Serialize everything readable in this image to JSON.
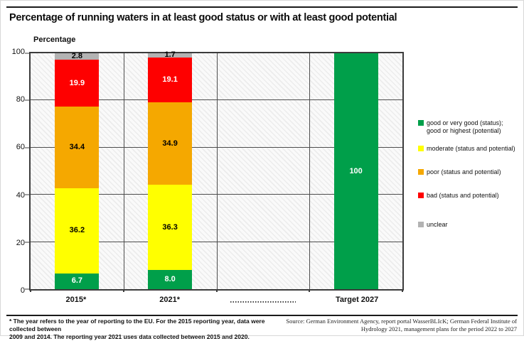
{
  "header": {
    "title": "Percentage of running waters in at least good status or with at least good potential"
  },
  "chart_data": {
    "type": "bar",
    "stacked": true,
    "title": "Percentage of running waters in at least good status or with at least good potential",
    "xlabel": "",
    "ylabel": "Percentage",
    "ylim": [
      0,
      100
    ],
    "yticks": [
      0,
      20,
      40,
      60,
      80,
      100
    ],
    "grid": "horizontal gridlines + vertical category dividers",
    "legend_position": "right",
    "background_pattern": "light diagonal hatch",
    "categories": [
      {
        "label": "2015*"
      },
      {
        "label": "2021*"
      },
      {
        "label": "",
        "dotted_placeholder": true
      },
      {
        "label": "Target 2027"
      }
    ],
    "series": [
      {
        "name": "good or very good (status);\ngood or highest (potential)",
        "color": "#009f4a",
        "label_color": "#ffffff",
        "values": [
          6.7,
          8.0,
          null,
          100
        ],
        "labels": [
          "6.7",
          "8.0",
          null,
          "100"
        ]
      },
      {
        "name": "moderate (status and potential)",
        "color": "#ffff00",
        "label_color": "#000000",
        "values": [
          36.2,
          36.3,
          null,
          null
        ],
        "labels": [
          "36.2",
          "36.3",
          null,
          null
        ]
      },
      {
        "name": "poor (status and potential)",
        "color": "#f5a800",
        "label_color": "#000000",
        "values": [
          34.4,
          34.9,
          null,
          null
        ],
        "labels": [
          "34.4",
          "34.9",
          null,
          null
        ]
      },
      {
        "name": "bad (status and potential)",
        "color": "#fe0000",
        "label_color": "#ffffff",
        "values": [
          19.9,
          19.1,
          null,
          null
        ],
        "labels": [
          "19.9",
          "19.1",
          null,
          null
        ]
      },
      {
        "name": "unclear",
        "color": "#b3b3b3",
        "label_color": "#000000",
        "values": [
          2.8,
          1.7,
          null,
          null
        ],
        "labels": [
          "2.8",
          "1.7",
          null,
          null
        ]
      }
    ]
  },
  "footer": {
    "note_lines": [
      "* The year refers to the year of reporting to the EU. For the 2015 reporting year, data were collected between",
      "2009 and 2014. The reporting year 2021 uses data collected between 2015 and 2020."
    ],
    "source_lines": [
      "Source: German Environment Agency, report portal WasserBLIcK; German Federal Institute of",
      "Hydrology 2021, management plans for the period 2022 to 2027"
    ]
  }
}
